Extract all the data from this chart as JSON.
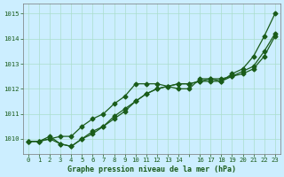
{
  "background_color": "#cceeff",
  "grid_color": "#aaddcc",
  "line_color": "#1a5c1a",
  "marker_color": "#1a5c1a",
  "title": "Graphe pression niveau de la mer (hPa)",
  "title_color": "#1a5c1a",
  "xlim": [
    -0.5,
    23.5
  ],
  "ylim": [
    1009.4,
    1015.4
  ],
  "yticks": [
    1010,
    1011,
    1012,
    1013,
    1014,
    1015
  ],
  "xticks": [
    0,
    1,
    2,
    3,
    4,
    5,
    6,
    7,
    8,
    9,
    10,
    11,
    12,
    13,
    14,
    15,
    16,
    17,
    18,
    19,
    20,
    21,
    22,
    23
  ],
  "xtick_labels": [
    "0",
    "1",
    "2",
    "3",
    "4",
    "5",
    "6",
    "7",
    "8",
    "9",
    "10",
    "11",
    "12",
    "13",
    "14",
    "",
    "16",
    "17",
    "18",
    "19",
    "20",
    "21",
    "22",
    "23"
  ],
  "series1": [
    1009.9,
    1009.9,
    1010.0,
    1010.1,
    1010.1,
    1010.5,
    1010.8,
    1011.0,
    1011.4,
    1011.7,
    1012.2,
    1012.2,
    1012.2,
    1012.1,
    1012.0,
    1012.0,
    1012.4,
    1012.4,
    1012.3,
    1012.6,
    1012.8,
    1013.3,
    1014.1,
    1015.0
  ],
  "series2": [
    1009.9,
    1009.9,
    1010.1,
    1009.8,
    1009.7,
    1010.0,
    1010.2,
    1010.5,
    1010.8,
    1011.1,
    1011.5,
    1011.8,
    1012.0,
    1012.1,
    1012.2,
    1012.2,
    1012.3,
    1012.4,
    1012.4,
    1012.5,
    1012.6,
    1012.8,
    1013.3,
    1014.1
  ],
  "series3": [
    1009.9,
    1009.9,
    1010.0,
    1009.8,
    1009.7,
    1010.0,
    1010.3,
    1010.5,
    1010.9,
    1011.2,
    1011.5,
    1011.8,
    1012.0,
    1012.1,
    1012.2,
    1012.2,
    1012.3,
    1012.3,
    1012.3,
    1012.5,
    1012.7,
    1012.9,
    1013.5,
    1014.2
  ]
}
